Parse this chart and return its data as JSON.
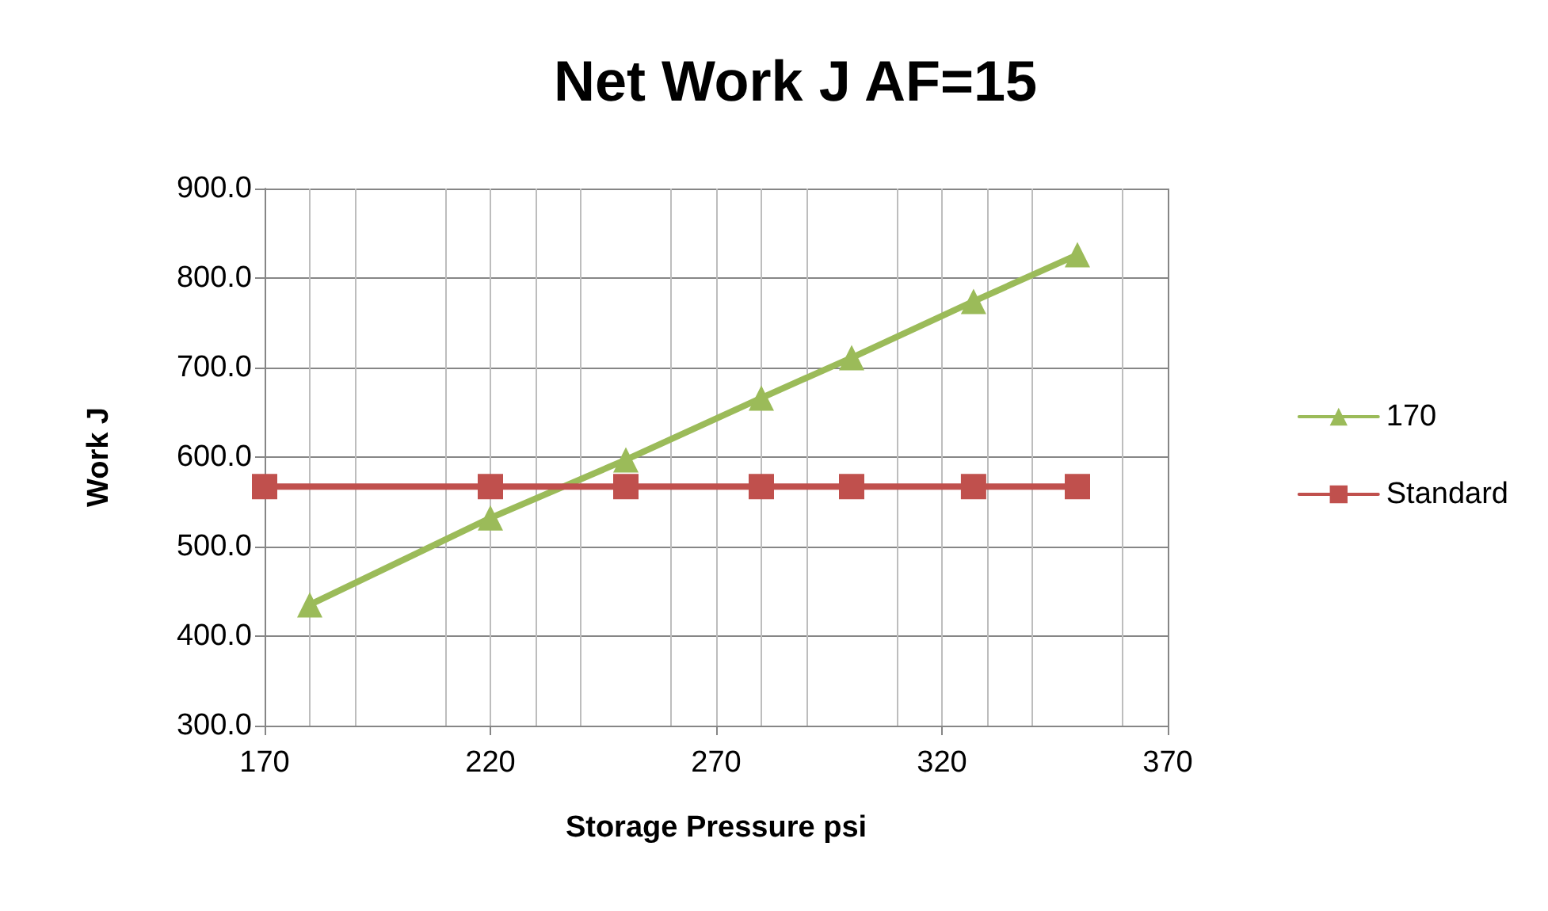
{
  "chart_data": {
    "type": "line",
    "title": "Net Work J AF=15",
    "xlabel": "Storage Pressure psi",
    "ylabel": "Work J",
    "series": [
      {
        "name": "170",
        "color": "#9bbb59",
        "marker": "triangle",
        "x": [
          180,
          220,
          250,
          280,
          300,
          327,
          350
        ],
        "values": [
          435,
          532,
          597,
          666,
          711,
          774,
          826
        ]
      },
      {
        "name": "Standard",
        "color": "#c0504d",
        "marker": "square",
        "x": [
          170,
          220,
          250,
          280,
          300,
          327,
          350
        ],
        "values": [
          567,
          567,
          567,
          567,
          567,
          567,
          567
        ]
      }
    ],
    "xlim": [
      170,
      370
    ],
    "xticks": [
      170,
      220,
      270,
      320,
      370
    ],
    "ylim": [
      300,
      900
    ],
    "yticks": [
      {
        "value": 300,
        "label": "300.0"
      },
      {
        "value": 400,
        "label": "400.0"
      },
      {
        "value": 500,
        "label": "500.0"
      },
      {
        "value": 600,
        "label": "600.0"
      },
      {
        "value": 700,
        "label": "700.0"
      },
      {
        "value": 800,
        "label": "800.0"
      },
      {
        "value": 900,
        "label": "900.0"
      }
    ],
    "grid": true,
    "legend": "right",
    "line_style": "solid"
  }
}
